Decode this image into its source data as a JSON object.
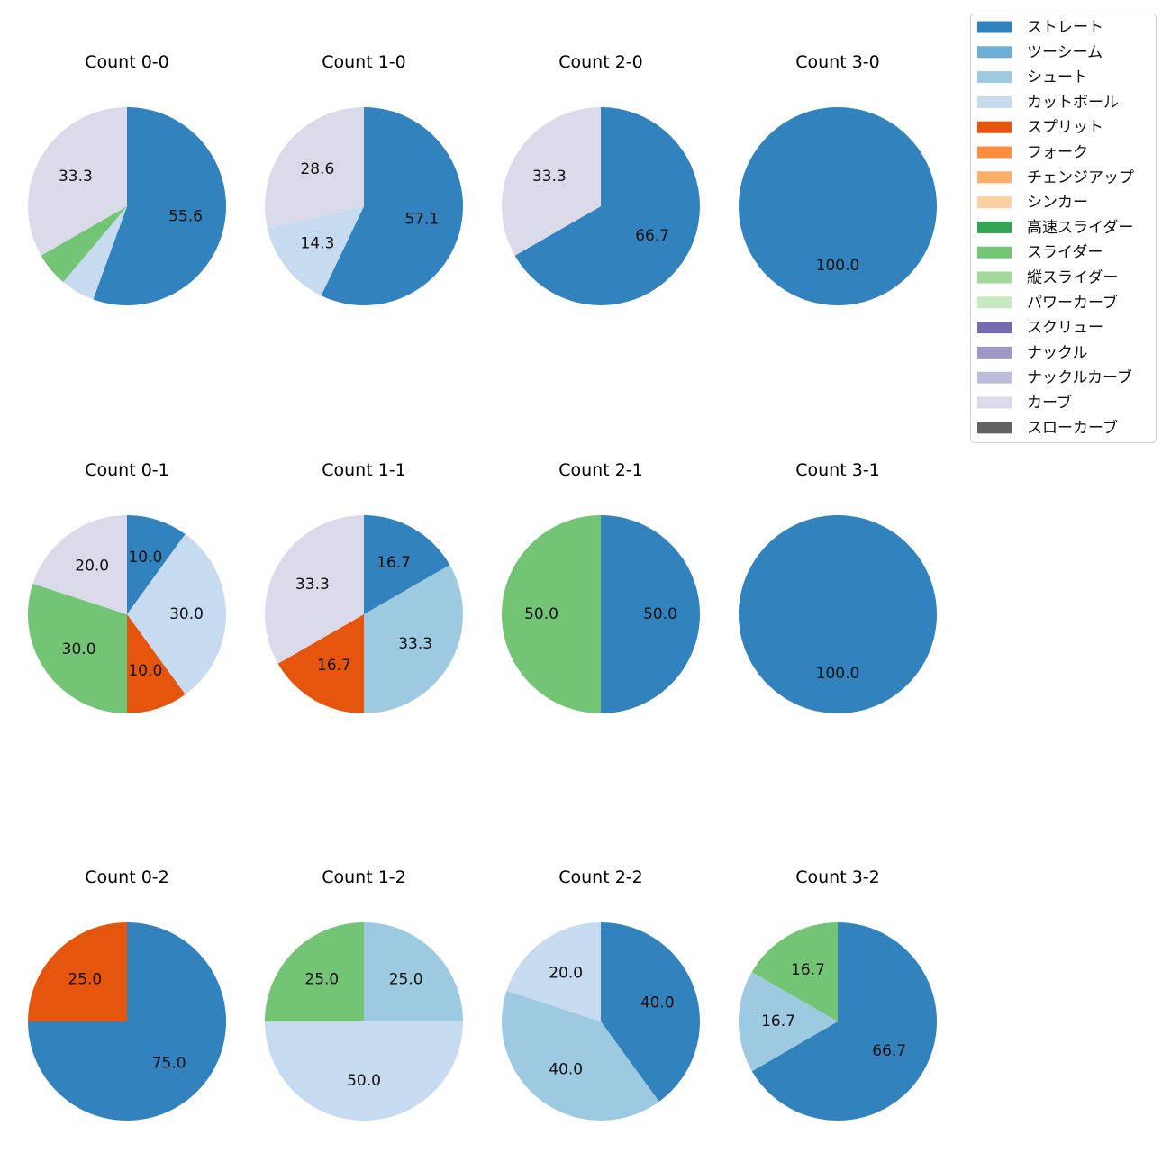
{
  "chart_data": {
    "type": "pie",
    "legend_placement": "top-right",
    "pitch_types": [
      {
        "name": "ストレート",
        "color": "#3182bd"
      },
      {
        "name": "ツーシーム",
        "color": "#6baed6"
      },
      {
        "name": "シュート",
        "color": "#9ecae1"
      },
      {
        "name": "カットボール",
        "color": "#c6dbef"
      },
      {
        "name": "スプリット",
        "color": "#e6550d"
      },
      {
        "name": "フォーク",
        "color": "#fd8d3c"
      },
      {
        "name": "チェンジアップ",
        "color": "#fdae6b"
      },
      {
        "name": "シンカー",
        "color": "#fdd0a2"
      },
      {
        "name": "高速スライダー",
        "color": "#31a354"
      },
      {
        "name": "スライダー",
        "color": "#74c476"
      },
      {
        "name": "縦スライダー",
        "color": "#a1d99b"
      },
      {
        "name": "パワーカーブ",
        "color": "#c7e9c0"
      },
      {
        "name": "スクリュー",
        "color": "#756bb1"
      },
      {
        "name": "ナックル",
        "color": "#9e9ac8"
      },
      {
        "name": "ナックルカーブ",
        "color": "#bcbddc"
      },
      {
        "name": "カーブ",
        "color": "#dadaeb"
      },
      {
        "name": "スローカーブ",
        "color": "#636363"
      }
    ],
    "pies": [
      {
        "title": "Count 0-0",
        "slices": [
          {
            "type": "ストレート",
            "value": 55.6
          },
          {
            "type": "カットボール",
            "value": 5.6
          },
          {
            "type": "スライダー",
            "value": 5.6
          },
          {
            "type": "カーブ",
            "value": 33.3
          }
        ]
      },
      {
        "title": "Count 1-0",
        "slices": [
          {
            "type": "ストレート",
            "value": 57.1
          },
          {
            "type": "カットボール",
            "value": 14.3
          },
          {
            "type": "カーブ",
            "value": 28.6
          }
        ]
      },
      {
        "title": "Count 2-0",
        "slices": [
          {
            "type": "ストレート",
            "value": 66.7
          },
          {
            "type": "カーブ",
            "value": 33.3
          }
        ]
      },
      {
        "title": "Count 3-0",
        "slices": [
          {
            "type": "ストレート",
            "value": 100.0
          }
        ]
      },
      {
        "title": "Count 0-1",
        "slices": [
          {
            "type": "ストレート",
            "value": 10.0
          },
          {
            "type": "カットボール",
            "value": 30.0
          },
          {
            "type": "スプリット",
            "value": 10.0
          },
          {
            "type": "スライダー",
            "value": 30.0
          },
          {
            "type": "カーブ",
            "value": 20.0
          }
        ]
      },
      {
        "title": "Count 1-1",
        "slices": [
          {
            "type": "ストレート",
            "value": 16.7
          },
          {
            "type": "シュート",
            "value": 33.3
          },
          {
            "type": "スプリット",
            "value": 16.7
          },
          {
            "type": "カーブ",
            "value": 33.3
          }
        ]
      },
      {
        "title": "Count 2-1",
        "slices": [
          {
            "type": "ストレート",
            "value": 50.0
          },
          {
            "type": "スライダー",
            "value": 50.0
          }
        ]
      },
      {
        "title": "Count 3-1",
        "slices": [
          {
            "type": "ストレート",
            "value": 100.0
          }
        ]
      },
      {
        "title": "Count 0-2",
        "slices": [
          {
            "type": "ストレート",
            "value": 75.0
          },
          {
            "type": "スプリット",
            "value": 25.0
          }
        ]
      },
      {
        "title": "Count 1-2",
        "slices": [
          {
            "type": "シュート",
            "value": 25.0
          },
          {
            "type": "カットボール",
            "value": 50.0
          },
          {
            "type": "スライダー",
            "value": 25.0
          }
        ]
      },
      {
        "title": "Count 2-2",
        "slices": [
          {
            "type": "ストレート",
            "value": 40.0
          },
          {
            "type": "シュート",
            "value": 40.0
          },
          {
            "type": "カットボール",
            "value": 20.0
          }
        ]
      },
      {
        "title": "Count 3-2",
        "slices": [
          {
            "type": "ストレート",
            "value": 66.7
          },
          {
            "type": "シュート",
            "value": 16.7
          },
          {
            "type": "スライダー",
            "value": 16.7
          }
        ]
      }
    ]
  }
}
